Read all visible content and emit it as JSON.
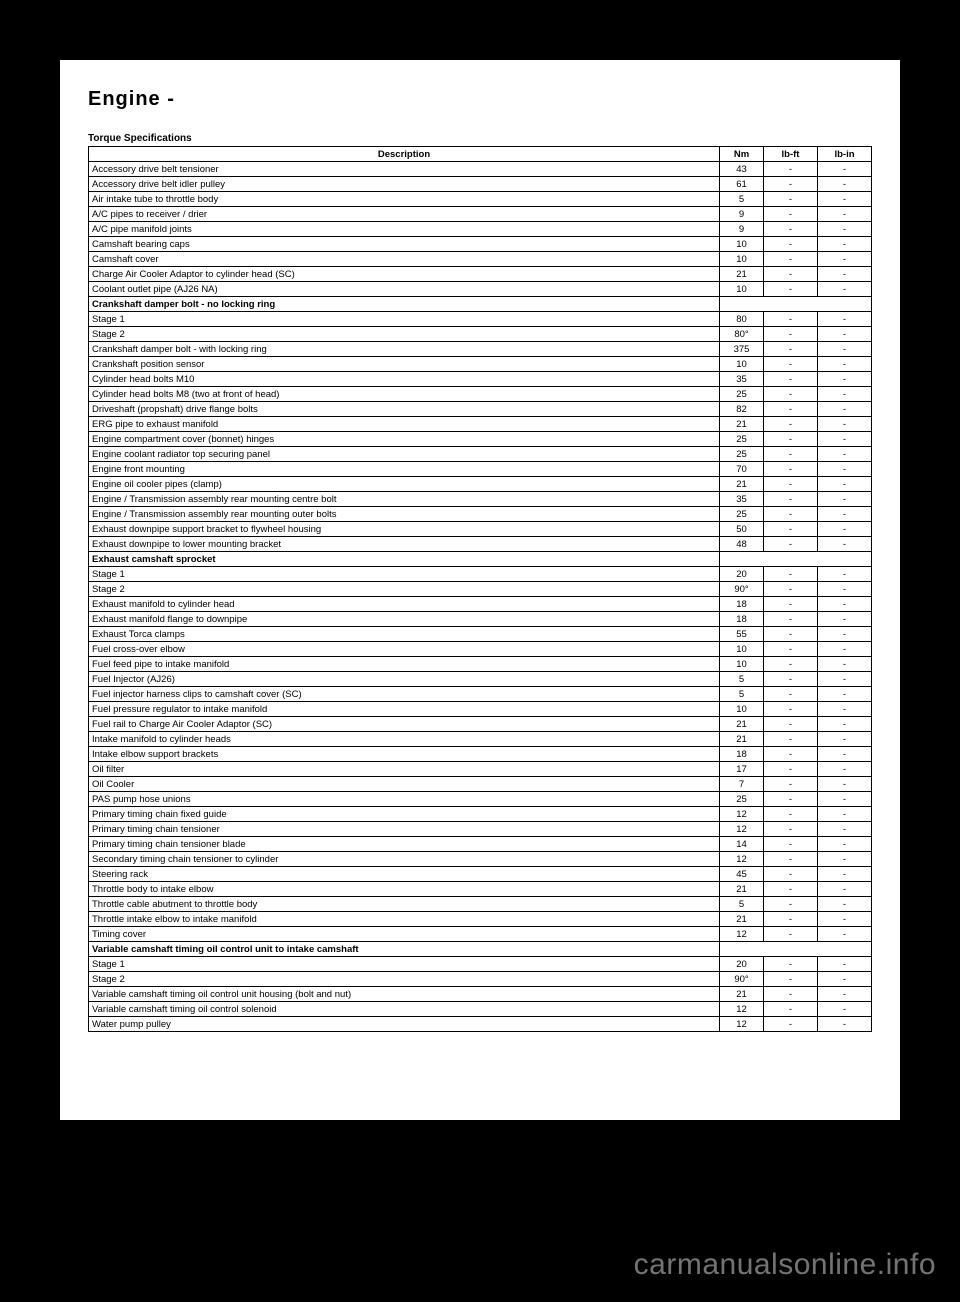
{
  "page": {
    "title": "Engine -",
    "section": "Torque Specifications",
    "watermark": "carmanualsonline.info"
  },
  "table": {
    "headers": {
      "desc": "Description",
      "nm": "Nm",
      "lbft": "lb-ft",
      "lbin": "lb-in"
    },
    "rows": [
      {
        "desc": "Accessory drive belt tensioner",
        "nm": "43",
        "lbft": "-",
        "lbin": "-"
      },
      {
        "desc": "Accessory drive belt idler pulley",
        "nm": "61",
        "lbft": "-",
        "lbin": "-"
      },
      {
        "desc": "Air intake tube to throttle body",
        "nm": "5",
        "lbft": "-",
        "lbin": "-"
      },
      {
        "desc": "A/C pipes to receiver / drier",
        "nm": "9",
        "lbft": "-",
        "lbin": "-"
      },
      {
        "desc": "A/C pipe manifold joints",
        "nm": "9",
        "lbft": "-",
        "lbin": "-"
      },
      {
        "desc": "Camshaft bearing caps",
        "nm": "10",
        "lbft": "-",
        "lbin": "-"
      },
      {
        "desc": "Camshaft cover",
        "nm": "10",
        "lbft": "-",
        "lbin": "-"
      },
      {
        "desc": "Charge Air Cooler Adaptor to cylinder head (SC)",
        "nm": "21",
        "lbft": "-",
        "lbin": "-"
      },
      {
        "desc": "Coolant outlet pipe (AJ26 NA)",
        "nm": "10",
        "lbft": "-",
        "lbin": "-"
      },
      {
        "subhead": true,
        "desc": "Crankshaft damper bolt - no locking ring"
      },
      {
        "desc": "Stage 1",
        "nm": "80",
        "lbft": "-",
        "lbin": "-"
      },
      {
        "desc": "Stage 2",
        "nm": "80°",
        "lbft": "-",
        "lbin": "-"
      },
      {
        "desc": "Crankshaft damper bolt - with locking ring",
        "nm": "375",
        "lbft": "-",
        "lbin": "-"
      },
      {
        "desc": "Crankshaft position sensor",
        "nm": "10",
        "lbft": "-",
        "lbin": "-"
      },
      {
        "desc": "Cylinder head bolts M10",
        "nm": "35",
        "lbft": "-",
        "lbin": "-"
      },
      {
        "desc": "Cylinder head bolts M8 (two at front of head)",
        "nm": "25",
        "lbft": "-",
        "lbin": "-"
      },
      {
        "desc": "Driveshaft (propshaft) drive flange bolts",
        "nm": "82",
        "lbft": "-",
        "lbin": "-"
      },
      {
        "desc": "ERG pipe to exhaust manifold",
        "nm": "21",
        "lbft": "-",
        "lbin": "-"
      },
      {
        "desc": "Engine compartment cover (bonnet) hinges",
        "nm": "25",
        "lbft": "-",
        "lbin": "-"
      },
      {
        "desc": "Engine coolant radiator top securing panel",
        "nm": "25",
        "lbft": "-",
        "lbin": "-"
      },
      {
        "desc": "Engine front mounting",
        "nm": "70",
        "lbft": "-",
        "lbin": "-"
      },
      {
        "desc": "Engine oil cooler pipes (clamp)",
        "nm": "21",
        "lbft": "-",
        "lbin": "-"
      },
      {
        "desc": "Engine / Transmission assembly rear mounting centre bolt",
        "nm": "35",
        "lbft": "-",
        "lbin": "-"
      },
      {
        "desc": "Engine / Transmission assembly rear mounting outer bolts",
        "nm": "25",
        "lbft": "-",
        "lbin": "-"
      },
      {
        "desc": "Exhaust downpipe support bracket to flywheel housing",
        "nm": "50",
        "lbft": "-",
        "lbin": "-"
      },
      {
        "desc": "Exhaust downpipe to lower mounting bracket",
        "nm": "48",
        "lbft": "-",
        "lbin": "-"
      },
      {
        "subhead": true,
        "desc": "Exhaust camshaft sprocket"
      },
      {
        "desc": "Stage 1",
        "nm": "20",
        "lbft": "-",
        "lbin": "-"
      },
      {
        "desc": "Stage 2",
        "nm": "90°",
        "lbft": "-",
        "lbin": "-"
      },
      {
        "desc": "Exhaust manifold to cylinder head",
        "nm": "18",
        "lbft": "-",
        "lbin": "-"
      },
      {
        "desc": "Exhaust manifold flange to downpipe",
        "nm": "18",
        "lbft": "-",
        "lbin": "-"
      },
      {
        "desc": "Exhaust Torca clamps",
        "nm": "55",
        "lbft": "-",
        "lbin": "-"
      },
      {
        "desc": "Fuel cross-over elbow",
        "nm": "10",
        "lbft": "-",
        "lbin": "-"
      },
      {
        "desc": "Fuel feed pipe to intake manifold",
        "nm": "10",
        "lbft": "-",
        "lbin": "-"
      },
      {
        "desc": "Fuel Injector (AJ26)",
        "nm": "5",
        "lbft": "-",
        "lbin": "-"
      },
      {
        "desc": "Fuel injector harness clips to camshaft cover (SC)",
        "nm": "5",
        "lbft": "-",
        "lbin": "-"
      },
      {
        "desc": "Fuel pressure regulator to intake manifold",
        "nm": "10",
        "lbft": "-",
        "lbin": "-"
      },
      {
        "desc": "Fuel rail to Charge Air Cooler Adaptor (SC)",
        "nm": "21",
        "lbft": "-",
        "lbin": "-"
      },
      {
        "desc": "Intake manifold to cylinder heads",
        "nm": "21",
        "lbft": "-",
        "lbin": "-"
      },
      {
        "desc": "Intake elbow support brackets",
        "nm": "18",
        "lbft": "-",
        "lbin": "-"
      },
      {
        "desc": "Oil filter",
        "nm": "17",
        "lbft": "-",
        "lbin": "-"
      },
      {
        "desc": "Oil Cooler",
        "nm": "7",
        "lbft": "-",
        "lbin": "-"
      },
      {
        "desc": "PAS pump hose unions",
        "nm": "25",
        "lbft": "-",
        "lbin": "-"
      },
      {
        "desc": "Primary timing chain fixed guide",
        "nm": "12",
        "lbft": "-",
        "lbin": "-"
      },
      {
        "desc": "Primary timing chain tensioner",
        "nm": "12",
        "lbft": "-",
        "lbin": "-"
      },
      {
        "desc": "Primary timing chain tensioner blade",
        "nm": "14",
        "lbft": "-",
        "lbin": "-"
      },
      {
        "desc": "Secondary timing chain tensioner to cylinder",
        "nm": "12",
        "lbft": "-",
        "lbin": "-"
      },
      {
        "desc": "Steering rack",
        "nm": "45",
        "lbft": "-",
        "lbin": "-"
      },
      {
        "desc": "Throttle body to intake elbow",
        "nm": "21",
        "lbft": "-",
        "lbin": "-"
      },
      {
        "desc": "Throttle cable abutment to throttle body",
        "nm": "5",
        "lbft": "-",
        "lbin": "-"
      },
      {
        "desc": "Throttle intake elbow to intake manifold",
        "nm": "21",
        "lbft": "-",
        "lbin": "-"
      },
      {
        "desc": "Timing cover",
        "nm": "12",
        "lbft": "-",
        "lbin": "-"
      },
      {
        "subhead": true,
        "desc": "Variable camshaft timing oil control unit to intake camshaft"
      },
      {
        "desc": "Stage 1",
        "nm": "20",
        "lbft": "-",
        "lbin": "-"
      },
      {
        "desc": "Stage 2",
        "nm": "90°",
        "lbft": "-",
        "lbin": "-"
      },
      {
        "desc": "Variable camshaft timing oil control unit housing (bolt and nut)",
        "nm": "21",
        "lbft": "-",
        "lbin": "-"
      },
      {
        "desc": "Variable camshaft timing oil control solenoid",
        "nm": "12",
        "lbft": "-",
        "lbin": "-"
      },
      {
        "desc": "Water pump pulley",
        "nm": "12",
        "lbft": "-",
        "lbin": "-"
      }
    ]
  }
}
